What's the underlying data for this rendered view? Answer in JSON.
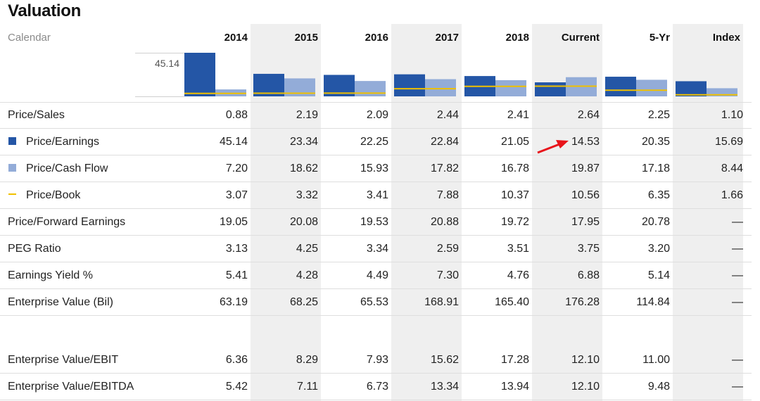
{
  "title": "Valuation",
  "calendar_label": "Calendar",
  "columns": [
    "2014",
    "2015",
    "2016",
    "2017",
    "2018",
    "Current",
    "5-Yr",
    "Index"
  ],
  "chart_max_label": "45.14",
  "colors": {
    "pe": "#2456a6",
    "pcf": "#93acd8",
    "pb": "#f0c000",
    "arrow": "#e8141b"
  },
  "rows": [
    {
      "label": "Price/Sales",
      "legend": "",
      "values": [
        "0.88",
        "2.19",
        "2.09",
        "2.44",
        "2.41",
        "2.64",
        "2.25",
        "1.10"
      ]
    },
    {
      "label": "Price/Earnings",
      "legend": "pe",
      "values": [
        "45.14",
        "23.34",
        "22.25",
        "22.84",
        "21.05",
        "14.53",
        "20.35",
        "15.69"
      ]
    },
    {
      "label": "Price/Cash Flow",
      "legend": "pcf",
      "values": [
        "7.20",
        "18.62",
        "15.93",
        "17.82",
        "16.78",
        "19.87",
        "17.18",
        "8.44"
      ]
    },
    {
      "label": "Price/Book",
      "legend": "pb",
      "values": [
        "3.07",
        "3.32",
        "3.41",
        "7.88",
        "10.37",
        "10.56",
        "6.35",
        "1.66"
      ]
    },
    {
      "label": "Price/Forward Earnings",
      "legend": "",
      "values": [
        "19.05",
        "20.08",
        "19.53",
        "20.88",
        "19.72",
        "17.95",
        "20.78",
        "—"
      ]
    },
    {
      "label": "PEG Ratio",
      "legend": "",
      "values": [
        "3.13",
        "4.25",
        "3.34",
        "2.59",
        "3.51",
        "3.75",
        "3.20",
        "—"
      ]
    },
    {
      "label": "Earnings Yield %",
      "legend": "",
      "values": [
        "5.41",
        "4.28",
        "4.49",
        "7.30",
        "4.76",
        "6.88",
        "5.14",
        "—"
      ]
    },
    {
      "label": "Enterprise Value (Bil)",
      "legend": "",
      "values": [
        "63.19",
        "68.25",
        "65.53",
        "168.91",
        "165.40",
        "176.28",
        "114.84",
        "—"
      ]
    },
    {
      "label": "Enterprise Value/EBIT",
      "legend": "",
      "values": [
        "6.36",
        "8.29",
        "7.93",
        "15.62",
        "17.28",
        "12.10",
        "11.00",
        "—"
      ]
    },
    {
      "label": "Enterprise Value/EBITDA",
      "legend": "",
      "values": [
        "5.42",
        "7.11",
        "6.73",
        "13.34",
        "13.94",
        "12.10",
        "9.48",
        "—"
      ]
    }
  ],
  "chart_data": {
    "type": "bar",
    "categories": [
      "2014",
      "2015",
      "2016",
      "2017",
      "2018",
      "Current",
      "5-Yr",
      "Index"
    ],
    "ylim": [
      0,
      45.14
    ],
    "series": [
      {
        "name": "Price/Earnings",
        "kind": "bar",
        "color": "#2456a6",
        "values": [
          45.14,
          23.34,
          22.25,
          22.84,
          21.05,
          14.53,
          20.35,
          15.69
        ]
      },
      {
        "name": "Price/Cash Flow",
        "kind": "bar",
        "color": "#93acd8",
        "values": [
          7.2,
          18.62,
          15.93,
          17.82,
          16.78,
          19.87,
          17.18,
          8.44
        ]
      },
      {
        "name": "Price/Book",
        "kind": "line",
        "color": "#f0c000",
        "values": [
          3.07,
          3.32,
          3.41,
          7.88,
          10.37,
          10.56,
          6.35,
          1.66
        ]
      }
    ],
    "annotations": [
      {
        "type": "arrow",
        "color": "red",
        "points_to": {
          "row": "Price/Earnings",
          "column": "Current",
          "value": 14.53
        }
      }
    ]
  }
}
